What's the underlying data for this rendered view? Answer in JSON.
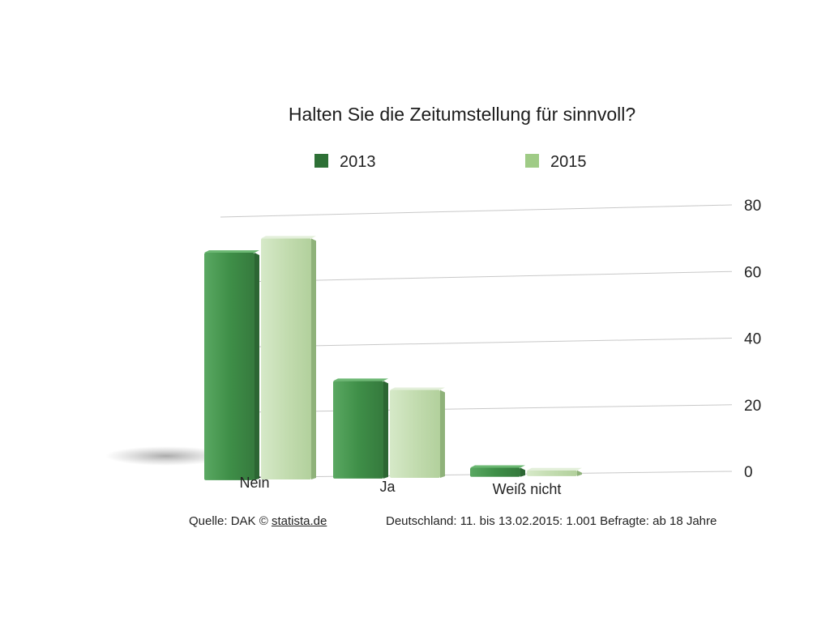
{
  "chart_data": {
    "type": "bar",
    "title": "Halten Sie die Zeitumstellung für sinnvoll?",
    "categories": [
      "Nein",
      "Ja",
      "Weiß nicht"
    ],
    "series": [
      {
        "name": "2013",
        "values": [
          69,
          29,
          2
        ],
        "color": "#3f8f48"
      },
      {
        "name": "2015",
        "values": [
          73,
          26,
          1
        ],
        "color": "#c3dcb0"
      }
    ],
    "ylim": [
      0,
      80
    ],
    "yticks": [
      "0",
      "20",
      "40",
      "60",
      "80"
    ],
    "ytick_values": [
      0,
      20,
      40,
      60,
      80
    ],
    "y_axis_side": "right",
    "grid": true,
    "legend_position": "top",
    "xlabel": "",
    "ylabel": ""
  },
  "legend_swatch_colors": {
    "2013": "#2e7036",
    "2015": "#9fcb86"
  },
  "footer": {
    "source_prefix": "Quelle: DAK ©",
    "source_link": "statista.de",
    "survey_note": "Deutschland: 11. bis 13.02.2015: 1.001 Befragte: ab 18 Jahre"
  }
}
